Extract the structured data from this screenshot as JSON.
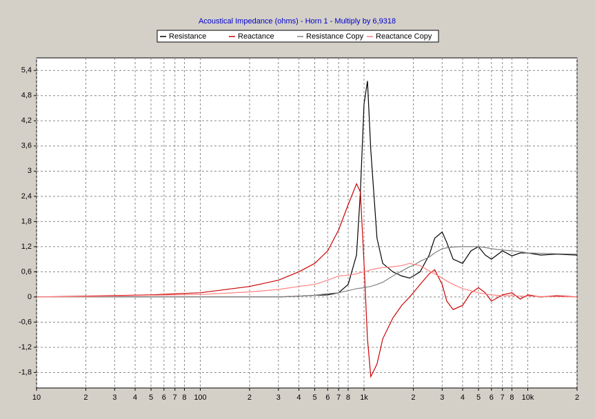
{
  "chart_data": {
    "type": "line",
    "title": "Acoustical Impedance (ohms) - Horn 1 - Multiply by 6,9318",
    "x_scale": "log",
    "grid": true,
    "legend": "top",
    "xlim": [
      10,
      20000
    ],
    "ylim": [
      -2.17,
      5.7
    ],
    "xticks": [
      10,
      {
        "value": 20,
        "label": "2"
      },
      {
        "value": 30,
        "label": "3"
      },
      {
        "value": 40,
        "label": "4"
      },
      {
        "value": 50,
        "label": "5"
      },
      {
        "value": 60,
        "label": "6"
      },
      {
        "value": 70,
        "label": "7"
      },
      {
        "value": 80,
        "label": "8"
      },
      100,
      {
        "value": 200,
        "label": "2"
      },
      {
        "value": 300,
        "label": "3"
      },
      {
        "value": 400,
        "label": "4"
      },
      {
        "value": 500,
        "label": "5"
      },
      {
        "value": 600,
        "label": "6"
      },
      {
        "value": 700,
        "label": "7"
      },
      {
        "value": 800,
        "label": "8"
      },
      {
        "value": 1000,
        "label": "1k"
      },
      {
        "value": 2000,
        "label": "2"
      },
      {
        "value": 3000,
        "label": "3"
      },
      {
        "value": 4000,
        "label": "4"
      },
      {
        "value": 5000,
        "label": "5"
      },
      {
        "value": 6000,
        "label": "6"
      },
      {
        "value": 7000,
        "label": "7"
      },
      {
        "value": 8000,
        "label": "8"
      },
      {
        "value": 10000,
        "label": "10k"
      },
      {
        "value": 20000,
        "label": "2"
      }
    ],
    "yticks": [
      {
        "value": -1.8,
        "label": "-1,8"
      },
      {
        "value": -1.2,
        "label": "-1,2"
      },
      {
        "value": -0.6,
        "label": "-0,6"
      },
      0,
      {
        "value": 0.6,
        "label": "0,6"
      },
      {
        "value": 1.2,
        "label": "1,2"
      },
      {
        "value": 1.8,
        "label": "1,8"
      },
      {
        "value": 2.4,
        "label": "2,4"
      },
      3,
      {
        "value": 3.6,
        "label": "3,6"
      },
      {
        "value": 4.2,
        "label": "4,2"
      },
      {
        "value": 4.8,
        "label": "4,8"
      },
      {
        "value": 5.4,
        "label": "5,4"
      }
    ],
    "x": [
      10,
      20,
      50,
      100,
      200,
      300,
      400,
      500,
      600,
      700,
      800,
      900,
      950,
      1000,
      1050,
      1100,
      1200,
      1300,
      1500,
      1700,
      1900,
      2000,
      2200,
      2500,
      2700,
      3000,
      3200,
      3500,
      4000,
      4500,
      5000,
      5500,
      6000,
      7000,
      8000,
      9000,
      10000,
      12000,
      15000,
      20000
    ],
    "series": [
      {
        "name": "Resistance",
        "color": "#000000",
        "values": [
          0,
          0,
          0,
          0,
          0,
          0,
          0.02,
          0.04,
          0.05,
          0.1,
          0.3,
          1.0,
          2.5,
          4.6,
          5.15,
          3.5,
          1.4,
          0.8,
          0.6,
          0.5,
          0.45,
          0.5,
          0.6,
          1.0,
          1.4,
          1.55,
          1.3,
          0.9,
          0.8,
          1.1,
          1.2,
          1.0,
          0.9,
          1.1,
          0.98,
          1.05,
          1.05,
          1.0,
          1.02,
          1.0
        ]
      },
      {
        "name": "Reactance",
        "color": "#cc0000",
        "values": [
          0,
          0.02,
          0.05,
          0.1,
          0.25,
          0.4,
          0.6,
          0.8,
          1.1,
          1.6,
          2.2,
          2.7,
          2.5,
          0.8,
          -1.0,
          -1.9,
          -1.6,
          -1.0,
          -0.5,
          -0.2,
          0,
          0.1,
          0.3,
          0.55,
          0.65,
          0.3,
          -0.1,
          -0.3,
          -0.2,
          0.1,
          0.22,
          0.1,
          -0.1,
          0.05,
          0.1,
          -0.05,
          0.05,
          0,
          0.03,
          0
        ]
      },
      {
        "name": "Resistance Copy",
        "color": "#808080",
        "values": [
          0,
          0,
          0,
          0,
          0,
          0,
          0.02,
          0.04,
          0.08,
          0.1,
          0.15,
          0.2,
          0.21,
          0.22,
          0.24,
          0.25,
          0.3,
          0.35,
          0.5,
          0.62,
          0.72,
          0.75,
          0.85,
          0.95,
          1.05,
          1.15,
          1.17,
          1.19,
          1.2,
          1.2,
          1.2,
          1.18,
          1.15,
          1.12,
          1.1,
          1.08,
          1.05,
          1.04,
          1.03,
          1.02
        ]
      },
      {
        "name": "Reactance Copy",
        "color": "#ff8080",
        "values": [
          0,
          0.01,
          0.04,
          0.06,
          0.12,
          0.18,
          0.25,
          0.3,
          0.4,
          0.5,
          0.52,
          0.55,
          0.58,
          0.6,
          0.62,
          0.65,
          0.68,
          0.7,
          0.72,
          0.75,
          0.8,
          0.78,
          0.75,
          0.62,
          0.55,
          0.45,
          0.38,
          0.3,
          0.2,
          0.15,
          0.1,
          0.07,
          0.05,
          0.03,
          0.03,
          0.02,
          0.02,
          0.01,
          0.01,
          0
        ]
      }
    ]
  }
}
